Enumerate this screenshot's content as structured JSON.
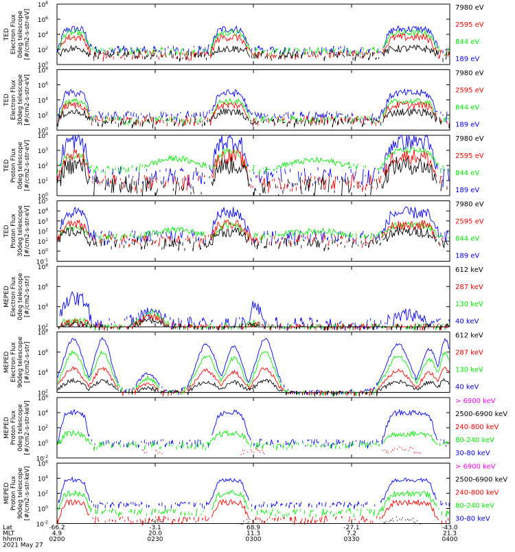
{
  "colors": {
    "black": "#000000",
    "red": "#ff0000",
    "green": "#00ee00",
    "blue": "#0000ff",
    "magenta": "#ff00ff"
  },
  "chart_data": [
    {
      "type": "line",
      "ylabel": [
        "TED",
        "Electron Flux",
        "0deg telescope",
        "[#/cm2-s-str-eV]"
      ],
      "y_log": true,
      "ytick_exponents": [
        0,
        2,
        4,
        6,
        8
      ],
      "series": [
        {
          "name": "7980 eV",
          "color": "#000000",
          "shape": "hump",
          "base": 1.3,
          "peak": 2.1,
          "noise": 0.5
        },
        {
          "name": "2595 eV",
          "color": "#ff0000",
          "shape": "hump",
          "base": 1.4,
          "peak": 3.6,
          "noise": 0.5
        },
        {
          "name": "844 eV",
          "color": "#00ee00",
          "shape": "hump",
          "base": 1.9,
          "peak": 4.2,
          "noise": 0.4
        },
        {
          "name": "189 eV",
          "color": "#0000ff",
          "shape": "hump",
          "base": 2.0,
          "peak": 4.7,
          "noise": 0.5
        }
      ]
    },
    {
      "type": "line",
      "ylabel": [
        "TED",
        "Electron Flux",
        "30deg telescope",
        "[#/cm2-s-str-eV]"
      ],
      "y_log": true,
      "ytick_exponents": [
        0,
        2,
        4,
        6,
        8
      ],
      "series": [
        {
          "name": "7980 eV",
          "color": "#000000",
          "shape": "hump",
          "base": 1.2,
          "peak": 2.4,
          "noise": 0.5
        },
        {
          "name": "2595 eV",
          "color": "#ff0000",
          "shape": "hump",
          "base": 1.4,
          "peak": 3.3,
          "noise": 0.5
        },
        {
          "name": "844 eV",
          "color": "#00ee00",
          "shape": "hump",
          "base": 1.5,
          "peak": 3.8,
          "noise": 0.4
        },
        {
          "name": "189 eV",
          "color": "#0000ff",
          "shape": "hump",
          "base": 2.0,
          "peak": 4.9,
          "noise": 0.5
        }
      ]
    },
    {
      "type": "line",
      "ylabel": [
        "TED",
        "Proton Flux",
        "0deg telescope",
        "[#/cm2-s-str-eV]"
      ],
      "y_log": true,
      "ytick_exponents": [
        0,
        1,
        2,
        3,
        4
      ],
      "series": [
        {
          "name": "7980 eV",
          "color": "#000000",
          "shape": "hump",
          "base": 0.7,
          "peak": 2.0,
          "noise": 0.6
        },
        {
          "name": "2595 eV",
          "color": "#ff0000",
          "shape": "hump",
          "base": 0.9,
          "peak": 2.6,
          "noise": 0.5
        },
        {
          "name": "844 eV",
          "color": "#00ee00",
          "shape": "arch",
          "base": 1.8,
          "peak": 3.0,
          "noise": 0.2
        },
        {
          "name": "189 eV",
          "color": "#0000ff",
          "shape": "hump",
          "base": 1.3,
          "peak": 3.6,
          "noise": 0.6
        }
      ]
    },
    {
      "type": "line",
      "ylabel": [
        "TED",
        "Proton Flux",
        "30deg telescope",
        "[#/cm2-s-str-eV]"
      ],
      "y_log": true,
      "ytick_exponents": [
        -1,
        0,
        1,
        2,
        3,
        4,
        5
      ],
      "series": [
        {
          "name": "7980 eV",
          "color": "#000000",
          "shape": "hump",
          "base": 0.8,
          "peak": 1.9,
          "noise": 0.5
        },
        {
          "name": "2595 eV",
          "color": "#ff0000",
          "shape": "hump",
          "base": 1.2,
          "peak": 2.6,
          "noise": 0.5
        },
        {
          "name": "844 eV",
          "color": "#00ee00",
          "shape": "arch",
          "base": 1.5,
          "peak": 2.6,
          "noise": 0.3
        },
        {
          "name": "189 eV",
          "color": "#0000ff",
          "shape": "hump",
          "base": 1.5,
          "peak": 3.8,
          "noise": 0.6
        }
      ]
    },
    {
      "type": "line",
      "ylabel": [
        "MEPED",
        "Electron Flux",
        "0deg telescope",
        "[#/cm2-s-str]"
      ],
      "y_log": true,
      "ytick_exponents": [
        2,
        4,
        6,
        8
      ],
      "series": [
        {
          "name": "612 keV",
          "color": "#000000",
          "shape": "floor",
          "base": 2.0,
          "peak": 2.8,
          "noise": 0.3
        },
        {
          "name": "287 keV",
          "color": "#ff0000",
          "shape": "floor",
          "base": 2.0,
          "peak": 3.2,
          "noise": 0.4
        },
        {
          "name": "130 keV",
          "color": "#00ee00",
          "shape": "floor",
          "base": 2.0,
          "peak": 3.6,
          "noise": 0.4
        },
        {
          "name": "40 keV",
          "color": "#0000ff",
          "shape": "spiky",
          "base": 2.3,
          "peak": 5.4,
          "noise": 0.7
        }
      ]
    },
    {
      "type": "line",
      "ylabel": [
        "MEPED",
        "Electron Flux",
        "90deg telescope",
        "[#/cm2-s-str]"
      ],
      "y_log": true,
      "ytick_exponents": [
        2,
        4,
        6,
        8
      ],
      "series": [
        {
          "name": "612 keV",
          "color": "#000000",
          "shape": "belt",
          "base": 2.0,
          "peak": 3.2,
          "noise": 0.2
        },
        {
          "name": "287 keV",
          "color": "#ff0000",
          "shape": "belt",
          "base": 2.0,
          "peak": 4.4,
          "noise": 0.2
        },
        {
          "name": "130 keV",
          "color": "#00ee00",
          "shape": "belt",
          "base": 2.0,
          "peak": 6.0,
          "noise": 0.2
        },
        {
          "name": "40 keV",
          "color": "#0000ff",
          "shape": "belt",
          "base": 2.1,
          "peak": 7.3,
          "noise": 0.15
        }
      ]
    },
    {
      "type": "line",
      "ylabel": [
        "MEPED",
        "Proton Flux",
        "0deg telescope",
        "[#/cm2-s-str-keV]"
      ],
      "y_log": true,
      "ytick_exponents": [
        -2,
        0,
        2,
        4,
        6
      ],
      "series": [
        {
          "name": "> 6900 keV",
          "color": "#ff00ff",
          "shape": "none",
          "base": -3,
          "peak": -3,
          "noise": 0
        },
        {
          "name": "2500-6900 keV",
          "color": "#000000",
          "shape": "none",
          "base": -3,
          "peak": -3,
          "noise": 0
        },
        {
          "name": "240-800 keV",
          "color": "#ff0000",
          "shape": "dots",
          "base": -1.4,
          "peak": -0.6,
          "noise": 0.3
        },
        {
          "name": "80-240 keV",
          "color": "#00ee00",
          "shape": "hump",
          "base": -0.2,
          "peak": 1.2,
          "noise": 0.4
        },
        {
          "name": "30-80 keV",
          "color": "#0000ff",
          "shape": "hump",
          "base": 0.1,
          "peak": 4.0,
          "noise": 0.4
        }
      ]
    },
    {
      "type": "line",
      "ylabel": [
        "MEPED",
        "Proton Flux",
        "90deg telescope",
        "[#/cm2-s-str-keV]"
      ],
      "y_log": true,
      "ytick_exponents": [
        -2,
        0,
        2,
        4,
        6
      ],
      "series": [
        {
          "name": "> 6900 keV",
          "color": "#ff00ff",
          "shape": "none",
          "base": -3,
          "peak": -3,
          "noise": 0
        },
        {
          "name": "2500-6900 keV",
          "color": "#000000",
          "shape": "dots",
          "base": -2.0,
          "peak": -1.2,
          "noise": 0.3
        },
        {
          "name": "240-800 keV",
          "color": "#ff0000",
          "shape": "hump",
          "base": -1.4,
          "peak": 0.8,
          "noise": 0.4
        },
        {
          "name": "80-240 keV",
          "color": "#00ee00",
          "shape": "hump",
          "base": -0.4,
          "peak": 2.0,
          "noise": 0.4
        },
        {
          "name": "30-80 keV",
          "color": "#0000ff",
          "shape": "hump",
          "base": 0.6,
          "peak": 3.8,
          "noise": 0.3
        }
      ]
    }
  ],
  "time_axis": {
    "row_labels": [
      "Lat",
      "MLT",
      "hhmm",
      "2021 May 27"
    ],
    "ticks": [
      {
        "lat": "-66.2",
        "mlt": "4.9",
        "hhmm": "0200"
      },
      {
        "lat": "-3.1",
        "mlt": "20.0",
        "hhmm": "0230"
      },
      {
        "lat": "68.9",
        "mlt": "11.3",
        "hhmm": "0300"
      },
      {
        "lat": "-27.1",
        "mlt": "7.2",
        "hhmm": "0330"
      },
      {
        "lat": "-43.0",
        "mlt": "21.3",
        "hhmm": "0400"
      }
    ]
  }
}
